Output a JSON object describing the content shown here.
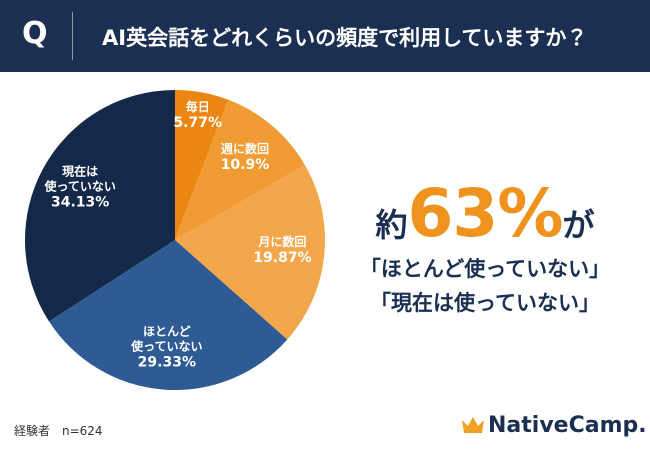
{
  "header": {
    "q": "Q",
    "title": "AI英会話をどれくらいの頻度で利用していますか？"
  },
  "chart_data": {
    "type": "pie",
    "categories": [
      "毎日",
      "週に数回",
      "月に数回",
      "ほとんど\n使っていない",
      "現在は\n使っていない"
    ],
    "values": [
      5.77,
      10.9,
      19.87,
      29.33,
      34.13
    ],
    "value_labels": [
      "5.77%",
      "10.9%",
      "19.87%",
      "29.33%",
      "34.13%"
    ],
    "colors": [
      "#ec8612",
      "#f09b33",
      "#f4a64b",
      "#2e5b93",
      "#14284a"
    ]
  },
  "callout": {
    "prefix": "約",
    "highlight": "63%",
    "suffix": "が",
    "line2": "「ほとんど使っていない」",
    "line3": "「現在は使っていない」"
  },
  "footer": "経験者　n=624",
  "brand": "NativeCamp."
}
